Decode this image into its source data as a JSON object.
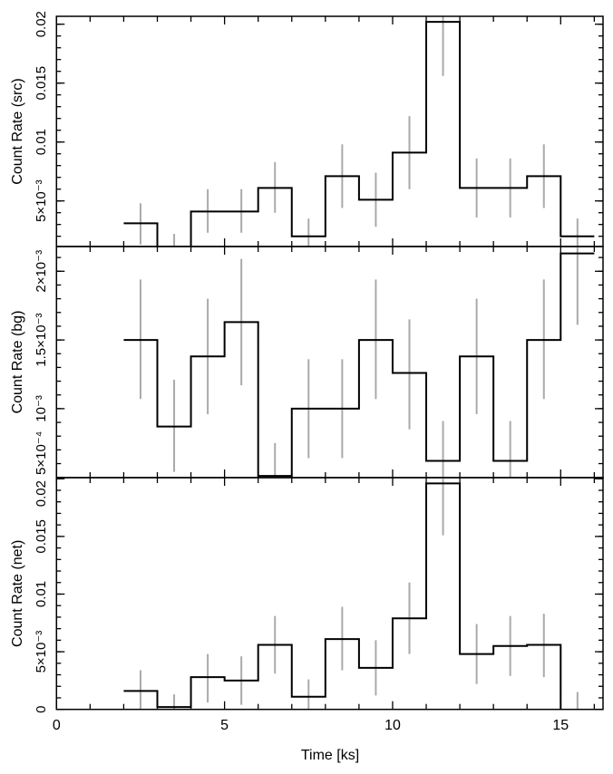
{
  "chart_data": {
    "type": "line",
    "style": "step histogram with error bars",
    "xlabel": "Time [ks]",
    "xlim": [
      0,
      16.26
    ],
    "x_ticks": [
      {
        "v": 0,
        "label": "0"
      },
      {
        "v": 5,
        "label": "5"
      },
      {
        "v": 10,
        "label": "10"
      },
      {
        "v": 15,
        "label": "15"
      }
    ],
    "bin_edges": [
      2,
      3,
      4,
      5,
      6,
      7,
      8,
      9,
      10,
      11,
      12,
      13,
      14,
      15,
      16
    ],
    "colors": {
      "step": "#000000",
      "error": "#aaaaaa"
    },
    "grid": false,
    "panels": [
      {
        "ylabel": "Count Rate (src)",
        "ylim": [
          0.00113,
          0.02067
        ],
        "minor_step": 0.001,
        "y_ticks": [
          {
            "v": 0.005,
            "label": "5×10⁻³"
          },
          {
            "v": 0.01,
            "label": "0.01"
          },
          {
            "v": 0.015,
            "label": "0.015"
          },
          {
            "v": 0.02,
            "label": "0.02"
          }
        ],
        "values": [
          0.0031,
          0.0011,
          0.0041,
          0.0041,
          0.0061,
          0.002,
          0.0071,
          0.0051,
          0.0091,
          0.0202,
          0.0061,
          0.0061,
          0.0071,
          0.002
        ],
        "err_low": [
          0.0013,
          0.0011,
          0.0023,
          0.0023,
          0.004,
          0.0011,
          0.0044,
          0.0028,
          0.006,
          0.0156,
          0.0036,
          0.0036,
          0.0044,
          0.0011
        ],
        "err_high": [
          0.0048,
          0.0022,
          0.006,
          0.006,
          0.0083,
          0.0035,
          0.0098,
          0.0074,
          0.0122,
          0.021,
          0.0086,
          0.0086,
          0.0098,
          0.0035
        ]
      },
      {
        "ylabel": "Count Rate (bg)",
        "ylim": [
          0.000498,
          0.00218
        ],
        "minor_step": 0.0001,
        "y_ticks": [
          {
            "v": 0.0005,
            "label": "5×10⁻⁴"
          },
          {
            "v": 0.001,
            "label": "10⁻³"
          },
          {
            "v": 0.0015,
            "label": "1.5×10⁻³"
          },
          {
            "v": 0.002,
            "label": "2×10⁻³"
          }
        ],
        "values": [
          0.0015,
          0.00087,
          0.00138,
          0.00163,
          0.00051,
          0.001,
          0.001,
          0.0015,
          0.00126,
          0.00062,
          0.00138,
          0.00062,
          0.0015,
          0.00213
        ],
        "err_low": [
          0.00107,
          0.00054,
          0.00096,
          0.00117,
          0.0005,
          0.00064,
          0.00064,
          0.00107,
          0.00085,
          0.0005,
          0.00096,
          0.0005,
          0.00107,
          0.00161
        ],
        "err_high": [
          0.00194,
          0.00121,
          0.0018,
          0.00209,
          0.00075,
          0.00136,
          0.00136,
          0.00194,
          0.00165,
          0.00091,
          0.0018,
          0.00091,
          0.00194,
          0.0022
        ]
      },
      {
        "ylabel": "Count Rate (net)",
        "ylim": [
          0,
          0.0201
        ],
        "minor_step": 0.001,
        "y_ticks": [
          {
            "v": 0,
            "label": "0"
          },
          {
            "v": 0.005,
            "label": "5×10⁻³"
          },
          {
            "v": 0.01,
            "label": "0.01"
          },
          {
            "v": 0.015,
            "label": "0.015"
          },
          {
            "v": 0.02,
            "label": "0.02"
          }
        ],
        "values": [
          0.0016,
          0.0002,
          0.0028,
          0.0025,
          0.0056,
          0.0011,
          0.0061,
          0.0036,
          0.0079,
          0.0196,
          0.0048,
          0.0055,
          0.0056,
          -0.0005
        ],
        "err_low": [
          0.0,
          0.0,
          0.0006,
          0.0004,
          0.0031,
          0.0,
          0.0034,
          0.0012,
          0.0048,
          0.0151,
          0.0022,
          0.0029,
          0.0028,
          0.0
        ],
        "err_high": [
          0.0034,
          0.0013,
          0.0048,
          0.0046,
          0.0081,
          0.0026,
          0.0089,
          0.006,
          0.011,
          0.0201,
          0.0074,
          0.0081,
          0.0083,
          0.0015
        ]
      }
    ]
  }
}
